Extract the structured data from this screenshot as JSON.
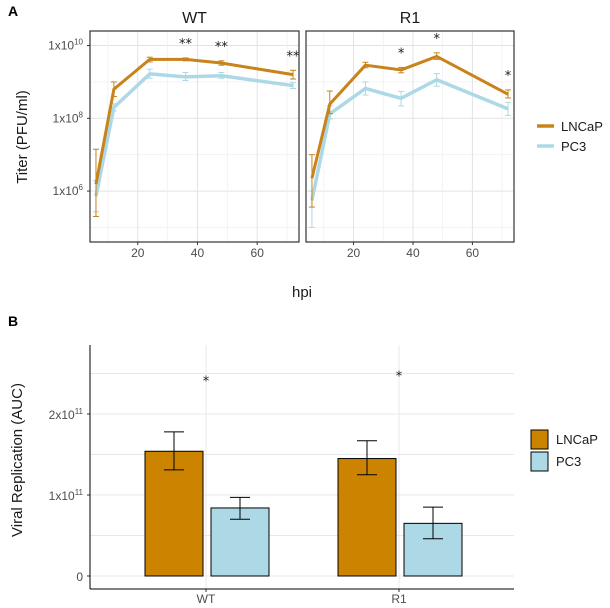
{
  "panel_labels": {
    "a": "A",
    "b": "B"
  },
  "chart_data": [
    {
      "id": "A",
      "type": "line",
      "facets": [
        "WT",
        "R1"
      ],
      "xlabel": "hpi",
      "ylabel": "Titer (PFU/ml)",
      "yscale": "log10",
      "ylim_log10": [
        4.6,
        10.4
      ],
      "xlim": [
        4,
        74
      ],
      "x_ticks": [
        20,
        40,
        60
      ],
      "y_ticks": [
        {
          "log10": 6,
          "base": "1x10",
          "exp": "6"
        },
        {
          "log10": 8,
          "base": "1x10",
          "exp": "8"
        },
        {
          "log10": 10,
          "base": "1x10",
          "exp": "10"
        }
      ],
      "grid": true,
      "legend_position": "right",
      "x": [
        6,
        12,
        24,
        36,
        48,
        72
      ],
      "series_colors": {
        "LNCaP": "#c8831a",
        "PC3": "#add8e6"
      },
      "panels": [
        {
          "facet": "WT",
          "series": [
            {
              "name": "LNCaP",
              "log10_values": [
                6.19,
                8.8,
                9.62,
                9.62,
                9.52,
                9.2
              ],
              "log10_err_low": [
                5.3,
                8.6,
                9.55,
                9.58,
                9.46,
                9.08
              ],
              "log10_err_high": [
                7.15,
                9.0,
                9.68,
                9.66,
                9.58,
                9.32
              ]
            },
            {
              "name": "PC3",
              "log10_values": [
                5.86,
                8.3,
                9.22,
                9.14,
                9.17,
                8.9
              ],
              "log10_err_low": [
                5.43,
                8.2,
                9.1,
                9.04,
                9.1,
                8.82
              ],
              "log10_err_high": [
                6.29,
                8.4,
                9.35,
                9.26,
                9.26,
                8.98
              ]
            }
          ],
          "significance": [
            {
              "x": 36,
              "label": "**"
            },
            {
              "x": 48,
              "label": "**"
            },
            {
              "x": 72,
              "label": "**"
            }
          ]
        },
        {
          "facet": "R1",
          "series": [
            {
              "name": "LNCaP",
              "log10_values": [
                6.35,
                8.39,
                9.46,
                9.33,
                9.7,
                8.66
              ],
              "log10_err_low": [
                5.56,
                8.13,
                9.39,
                9.25,
                9.62,
                8.56
              ],
              "log10_err_high": [
                7.0,
                8.75,
                9.54,
                9.4,
                9.8,
                8.78
              ]
            },
            {
              "name": "PC3",
              "log10_values": [
                5.74,
                8.12,
                8.82,
                8.55,
                9.06,
                8.26
              ],
              "log10_err_low": [
                5.0,
                7.98,
                8.64,
                8.34,
                8.88,
                8.08
              ],
              "log10_err_high": [
                6.0,
                8.35,
                9.0,
                8.74,
                9.23,
                8.44
              ]
            }
          ],
          "significance": [
            {
              "x": 36,
              "label": "*"
            },
            {
              "x": 48,
              "label": "*"
            },
            {
              "x": 72,
              "label": "*"
            }
          ]
        }
      ],
      "legend": [
        {
          "name": "LNCaP",
          "color": "#c8831a"
        },
        {
          "name": "PC3",
          "color": "#add8e6"
        }
      ]
    },
    {
      "id": "B",
      "type": "bar",
      "categories": [
        "WT",
        "R1"
      ],
      "ylabel": "Viral Replication (AUC)",
      "xlabel": "",
      "ylim": [
        0,
        285000000000.0
      ],
      "y_ticks": [
        {
          "value": 0,
          "label": "0",
          "exp": ""
        },
        {
          "value": 100000000000.0,
          "label": "1x10",
          "exp": "11"
        },
        {
          "value": 200000000000.0,
          "label": "2x10",
          "exp": "11"
        }
      ],
      "grid": true,
      "legend_position": "right",
      "series": [
        {
          "name": "LNCaP",
          "color": "#cc8400",
          "values": [
            154000000000.0,
            145000000000.0
          ],
          "err_low": [
            131000000000.0,
            125000000000.0
          ],
          "err_high": [
            178000000000.0,
            167000000000.0
          ]
        },
        {
          "name": "PC3",
          "color": "#add8e6",
          "values": [
            84000000000.0,
            65000000000.0
          ],
          "err_low": [
            70000000000.0,
            46000000000.0
          ],
          "err_high": [
            97000000000.0,
            85000000000.0
          ]
        }
      ],
      "significance": [
        {
          "category": "WT",
          "label": "*",
          "value": 240000000000.0
        },
        {
          "category": "R1",
          "label": "*",
          "value": 246000000000.0
        }
      ],
      "legend": [
        {
          "name": "LNCaP",
          "color": "#cc8400"
        },
        {
          "name": "PC3",
          "color": "#add8e6"
        }
      ]
    }
  ]
}
